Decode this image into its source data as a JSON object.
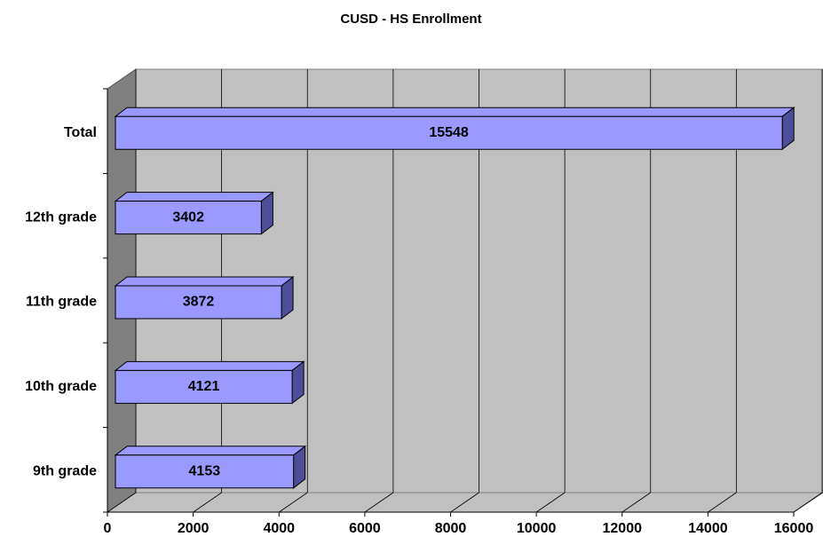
{
  "chart_data": {
    "type": "bar3d_horizontal",
    "title": "CUSD - HS Enrollment",
    "categories": [
      "Total",
      "12th grade",
      "11th grade",
      "10th grade",
      "9th grade"
    ],
    "values": [
      15548,
      3402,
      3872,
      4121,
      4153
    ],
    "color": "#9999ff",
    "xlim": [
      0,
      16000
    ],
    "xticks": [
      0,
      2000,
      4000,
      6000,
      8000,
      10000,
      12000,
      14000,
      16000
    ],
    "grid": true
  }
}
